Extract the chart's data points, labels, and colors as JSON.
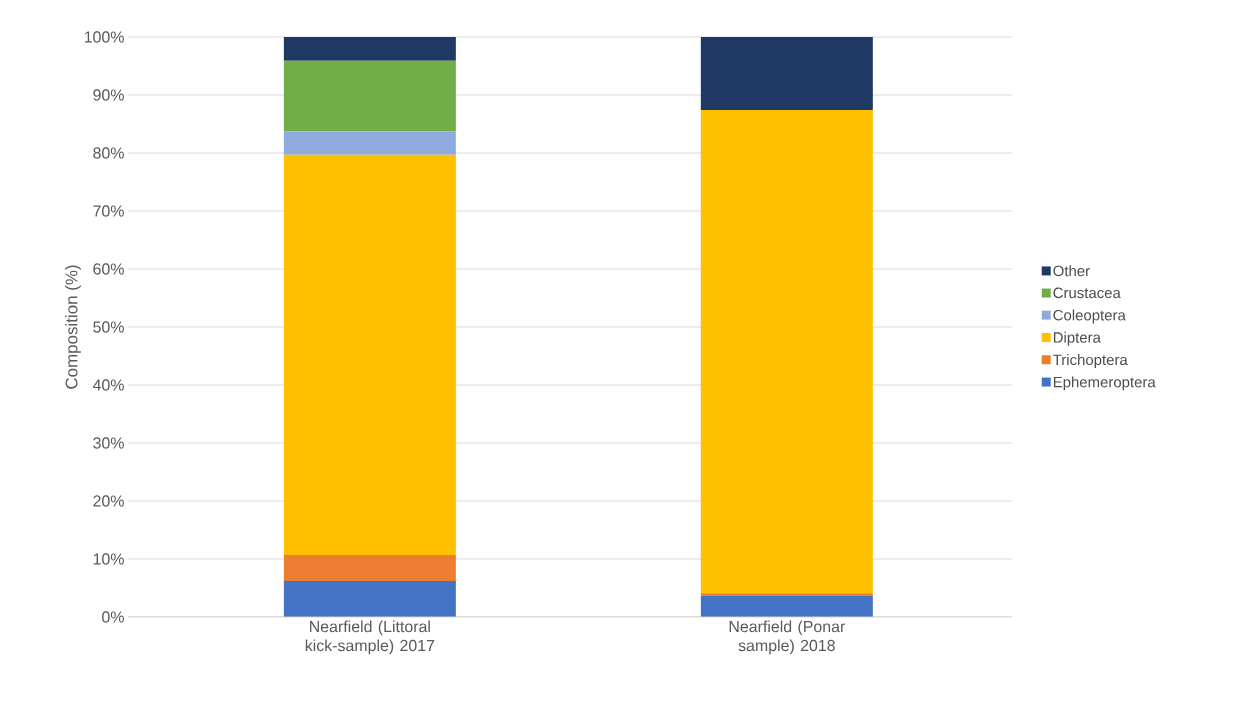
{
  "chart_data": {
    "type": "bar",
    "stacked": true,
    "ylabel": "Composition (%)",
    "categories": [
      "Nearfield (Littoral kick-sample) 2017",
      "Nearfield (Ponar sample) 2018"
    ],
    "series": [
      {
        "name": "Ephemeroptera",
        "color": "#4472c4",
        "values": [
          6.2,
          3.7
        ]
      },
      {
        "name": "Trichoptera",
        "color": "#ed7d31",
        "values": [
          4.5,
          0.4
        ]
      },
      {
        "name": "Diptera",
        "color": "#ffc000",
        "values": [
          69.0,
          83.3
        ]
      },
      {
        "name": "Coleoptera",
        "color": "#8faadc",
        "values": [
          4.0,
          0
        ]
      },
      {
        "name": "Crustacea",
        "color": "#70ad47",
        "values": [
          12.2,
          0
        ]
      },
      {
        "name": "Other",
        "color": "#203864",
        "values": [
          4.1,
          12.6
        ]
      }
    ],
    "ylim": [
      0,
      100
    ],
    "yticks": [
      {
        "value": 0,
        "label": "0%"
      },
      {
        "value": 10,
        "label": "10%"
      },
      {
        "value": 20,
        "label": "20%"
      },
      {
        "value": 30,
        "label": "30%"
      },
      {
        "value": 40,
        "label": "40%"
      },
      {
        "value": 50,
        "label": "50%"
      },
      {
        "value": 60,
        "label": "60%"
      },
      {
        "value": 70,
        "label": "70%"
      },
      {
        "value": 80,
        "label": "80%"
      },
      {
        "value": 90,
        "label": "90%"
      },
      {
        "value": 100,
        "label": "100%"
      }
    ],
    "grid": "y",
    "legend": "right"
  }
}
